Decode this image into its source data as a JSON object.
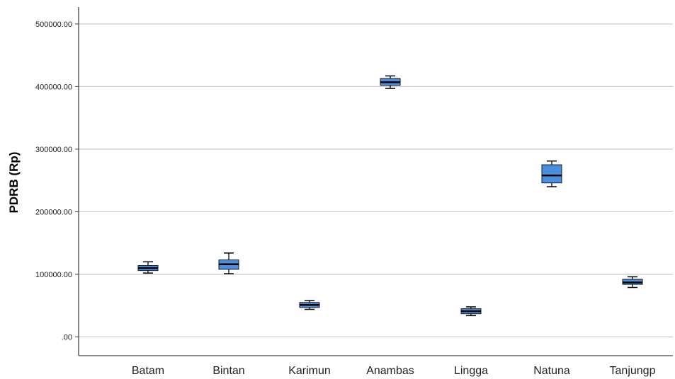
{
  "chart_data": {
    "type": "box",
    "title": "",
    "xlabel": "",
    "ylabel": "PDRB (Rp)",
    "ylim": [
      -30000,
      527000
    ],
    "yticks": [
      0,
      100000,
      200000,
      300000,
      400000,
      500000
    ],
    "ytick_labels": [
      ".00",
      "100000.00",
      "200000.00",
      "300000.00",
      "400000.00",
      "500000.00"
    ],
    "grid": true,
    "box_color": "#4a8fdf",
    "categories": [
      "Batam",
      "Bintan",
      "Karimun",
      "Anambas",
      "Lingga",
      "Natuna",
      "Tanjungp"
    ],
    "boxes": [
      {
        "min": 102000,
        "q1": 106000,
        "median": 110000,
        "q3": 114000,
        "max": 120000
      },
      {
        "min": 101000,
        "q1": 108000,
        "median": 116000,
        "q3": 123000,
        "max": 134000
      },
      {
        "min": 44000,
        "q1": 47000,
        "median": 51000,
        "q3": 55000,
        "max": 58000
      },
      {
        "min": 397000,
        "q1": 402000,
        "median": 407000,
        "q3": 413000,
        "max": 417000
      },
      {
        "min": 34000,
        "q1": 37000,
        "median": 41000,
        "q3": 45000,
        "max": 48000
      },
      {
        "min": 240000,
        "q1": 246000,
        "median": 258000,
        "q3": 275000,
        "max": 281000
      },
      {
        "min": 79000,
        "q1": 84000,
        "median": 87000,
        "q3": 92000,
        "max": 96000
      }
    ]
  }
}
